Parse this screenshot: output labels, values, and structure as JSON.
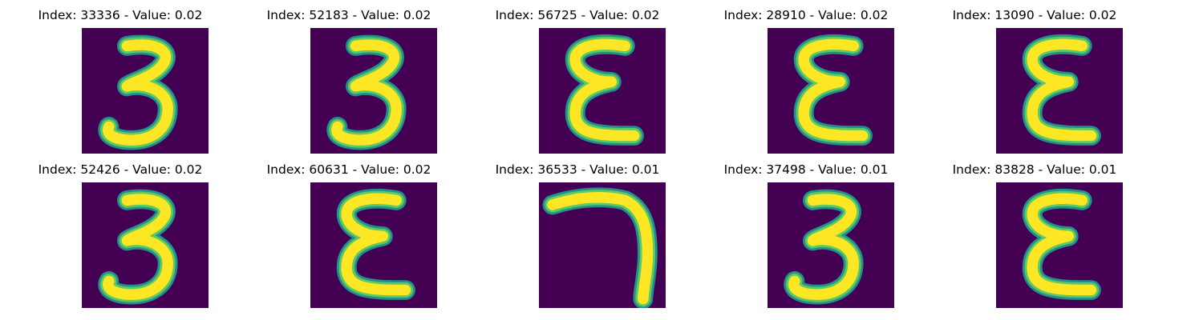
{
  "panels": [
    {
      "index": "33336",
      "value": "0.02",
      "glyph": "3"
    },
    {
      "index": "52183",
      "value": "0.02",
      "glyph": "3"
    },
    {
      "index": "56725",
      "value": "0.02",
      "glyph": "E"
    },
    {
      "index": "28910",
      "value": "0.02",
      "glyph": "E"
    },
    {
      "index": "13090",
      "value": "0.02",
      "glyph": "E"
    },
    {
      "index": "52426",
      "value": "0.02",
      "glyph": "3"
    },
    {
      "index": "60631",
      "value": "0.02",
      "glyph": "E"
    },
    {
      "index": "36533",
      "value": "0.01",
      "glyph": "7"
    },
    {
      "index": "37498",
      "value": "0.01",
      "glyph": "3"
    },
    {
      "index": "83828",
      "value": "0.01",
      "glyph": "E"
    }
  ],
  "colors": {
    "background": "#440154",
    "stroke_core": "#fde725",
    "stroke_edge": "#21918c",
    "stroke_mid": "#5ec962"
  }
}
